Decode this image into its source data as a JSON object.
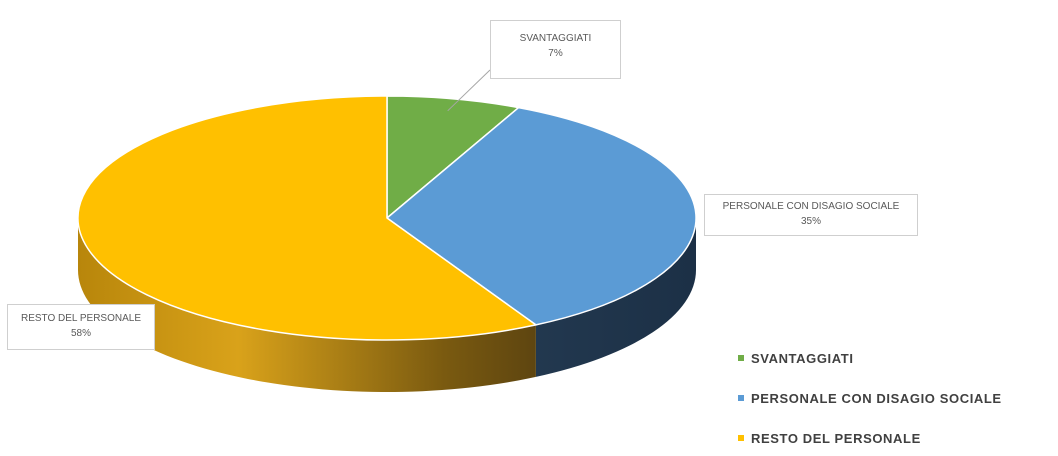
{
  "chart_data": {
    "type": "pie",
    "style": "3d",
    "categories": [
      "SVANTAGGIATI",
      "PERSONALE CON DISAGIO SOCIALE",
      "RESTO DEL PERSONALE"
    ],
    "values": [
      7,
      35,
      58
    ],
    "value_labels": [
      "7%",
      "35%",
      "58%"
    ],
    "colors": [
      "#70ad47",
      "#5b9bd5",
      "#ffc000"
    ],
    "legend_position": "bottom-right",
    "legend": {
      "items": [
        {
          "label": "SVANTAGGIATI",
          "color": "#70ad47"
        },
        {
          "label": "PERSONALE CON DISAGIO SOCIALE",
          "color": "#5b9bd5"
        },
        {
          "label": "RESTO DEL PERSONALE",
          "color": "#ffc000"
        }
      ]
    }
  }
}
